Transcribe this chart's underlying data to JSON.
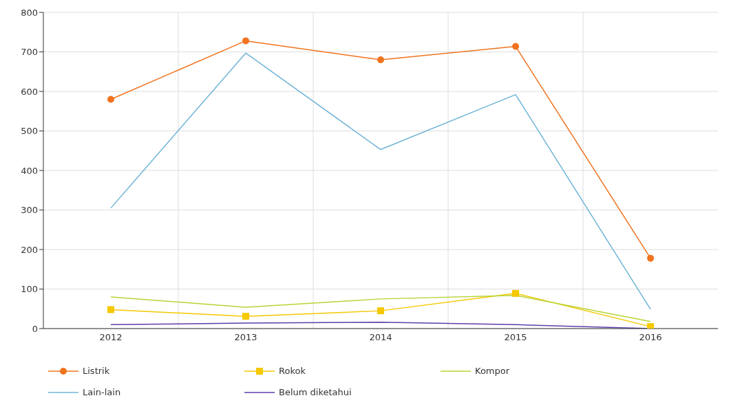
{
  "chart_data": {
    "type": "line",
    "categories": [
      "2012",
      "2013",
      "2014",
      "2015",
      "2016"
    ],
    "series": [
      {
        "name": "Listrik",
        "color": "#f0731e",
        "marker": "circle",
        "values": [
          580,
          728,
          680,
          714,
          178
        ]
      },
      {
        "name": "Rokok",
        "color": "#f5c800",
        "marker": "square",
        "values": [
          48,
          31,
          45,
          89,
          5
        ]
      },
      {
        "name": "Kompor",
        "color": "#b6d433",
        "marker": "none",
        "values": [
          80,
          54,
          75,
          84,
          18
        ]
      },
      {
        "name": "Lain-lain",
        "color": "#6fb4d6",
        "marker": "none",
        "values": [
          305,
          697,
          453,
          592,
          49
        ]
      },
      {
        "name": "Belum diketahui",
        "color": "#5a3ea8",
        "marker": "none",
        "values": [
          10,
          14,
          16,
          10,
          0
        ]
      }
    ],
    "ylim": [
      0,
      800
    ],
    "yticks": [
      0,
      100,
      200,
      300,
      400,
      500,
      600,
      700,
      800
    ],
    "grid": true,
    "legend": "bottom",
    "line_style": "solid"
  }
}
